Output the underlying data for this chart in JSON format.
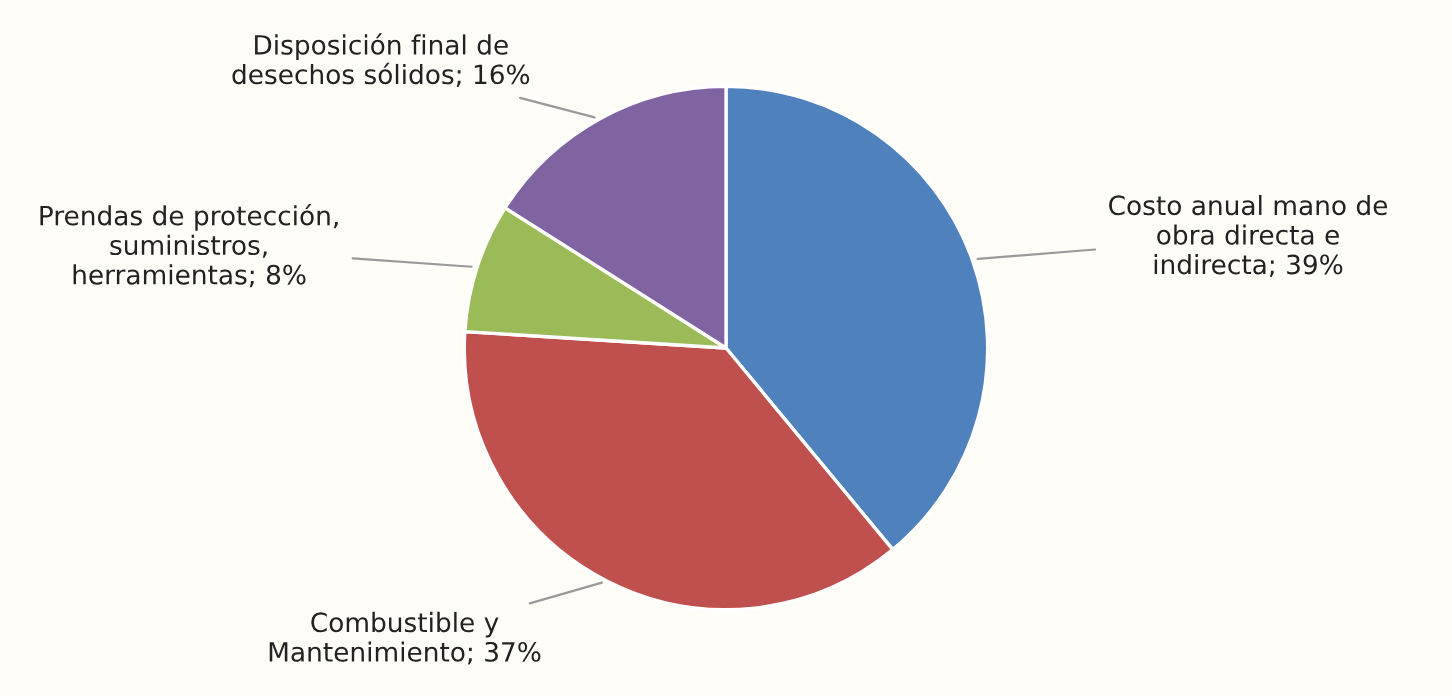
{
  "chart_data": {
    "type": "pie",
    "categories": [
      "Costo anual mano de obra directa e indirecta",
      "Combustible y Mantenimiento",
      "Prendas de protección, suministros, herramientas",
      "Disposición final de desechos sólidos"
    ],
    "values": [
      39,
      37,
      8,
      16
    ],
    "value_labels": [
      "39%",
      "37%",
      "8%",
      "16%"
    ],
    "colors": [
      "#4f81bd",
      "#c0504d",
      "#9bbb59",
      "#8064a2"
    ]
  }
}
